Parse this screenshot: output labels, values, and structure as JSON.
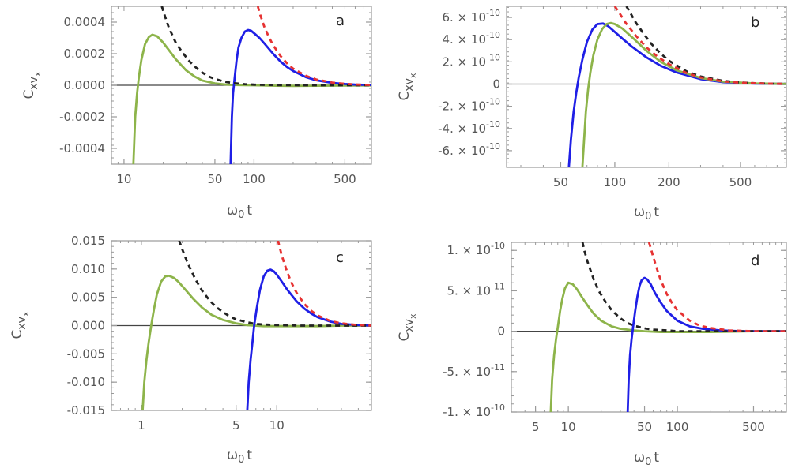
{
  "colors": {
    "green": "#8db44a",
    "blue": "#1f1fe6",
    "red": "#e63232",
    "black": "#222222",
    "frame": "#9a9a9a",
    "zero": "#444444"
  },
  "chart_data": [
    {
      "type": "line",
      "panel_label": "a",
      "xscale": "log",
      "xlim": [
        8,
        800
      ],
      "ylim": [
        -0.0005,
        0.0005
      ],
      "xlabel": {
        "main": "ω",
        "sub": "0",
        "rest": "t"
      },
      "ylabel": {
        "main": "C",
        "sub": "xv",
        "subsub": "x"
      },
      "xticks": [
        {
          "value": 10,
          "label": "10"
        },
        {
          "value": 50,
          "label": "50"
        },
        {
          "value": 100,
          "label": "100"
        },
        {
          "value": 500,
          "label": "500"
        }
      ],
      "yticks": [
        {
          "value": 0.0004,
          "label": "0.0004"
        },
        {
          "value": 0.0002,
          "label": "0.0002"
        },
        {
          "value": 0,
          "label": "0.0000"
        },
        {
          "value": -0.0002,
          "label": "-0.0002"
        },
        {
          "value": -0.0004,
          "label": "-0.0004"
        }
      ],
      "series": [
        {
          "name": "green",
          "style": "solid",
          "x": [
            11.8,
            12.2,
            12.6,
            13.0,
            13.6,
            14.5,
            15.5,
            16.5,
            18.0,
            20.0,
            22.5,
            25.0,
            30.0,
            35.0,
            40.0,
            50.0,
            60.0,
            70.0,
            85.0,
            100,
            150,
            200,
            300,
            500,
            800
          ],
          "y": [
            -0.0005,
            -0.0002,
            -5e-05,
            5e-05,
            0.00016,
            0.00026,
            0.000305,
            0.00032,
            0.00031,
            0.00027,
            0.000215,
            0.000165,
            9.5e-05,
            5.5e-05,
            3e-05,
            1.2e-05,
            5e-06,
            2e-06,
            5e-07,
            0,
            -3e-06,
            -4e-06,
            -3e-06,
            -2e-06,
            -1e-06
          ]
        },
        {
          "name": "blue",
          "style": "solid",
          "x": [
            66.0,
            67.5,
            69.0,
            71.0,
            73.5,
            76.0,
            80.0,
            85.0,
            90.0,
            95.0,
            100,
            110,
            120,
            140,
            160,
            180,
            200,
            250,
            300,
            400,
            500,
            600,
            800
          ],
          "y": [
            -0.0005,
            -0.0002,
            -5e-05,
            5e-05,
            0.00016,
            0.00024,
            0.0003,
            0.00034,
            0.00035,
            0.000345,
            0.00033,
            0.0003,
            0.000265,
            0.0002,
            0.00015,
            0.000115,
            9e-05,
            5.2e-05,
            3.2e-05,
            1.5e-05,
            8e-06,
            4e-06,
            2e-06
          ]
        },
        {
          "name": "black",
          "style": "dashed",
          "x": [
            19.5,
            20,
            22,
            25,
            28,
            32,
            36,
            40,
            45,
            50,
            60,
            70,
            85,
            100,
            150,
            200,
            300,
            500,
            800
          ],
          "y": [
            0.0005,
            0.00047,
            0.00037,
            0.00027,
            0.00021,
            0.00015,
            0.00011,
            8e-05,
            5.5e-05,
            4e-05,
            2.2e-05,
            1.3e-05,
            7e-06,
            4e-06,
            1e-06,
            5e-07,
            2e-07,
            0,
            0
          ]
        },
        {
          "name": "red",
          "style": "dashed",
          "x": [
            107,
            110,
            120,
            130,
            140,
            160,
            180,
            200,
            250,
            300,
            400,
            500,
            600,
            800
          ],
          "y": [
            0.0005,
            0.00046,
            0.00037,
            0.000305,
            0.000255,
            0.000185,
            0.000138,
            0.000105,
            6e-05,
            3.7e-05,
            1.7e-05,
            9e-06,
            5e-06,
            2e-06
          ]
        }
      ]
    },
    {
      "type": "line",
      "panel_label": "b",
      "xscale": "log",
      "xlim": [
        25,
        900
      ],
      "ylim": [
        -7.5e-10,
        7e-10
      ],
      "xlabel": {
        "main": "ω",
        "sub": "0",
        "rest": "t"
      },
      "ylabel": {
        "main": "C",
        "sub": "xv",
        "subsub": "x"
      },
      "xticks": [
        {
          "value": 50,
          "label": "50"
        },
        {
          "value": 100,
          "label": "100"
        },
        {
          "value": 200,
          "label": "200"
        },
        {
          "value": 500,
          "label": "500"
        }
      ],
      "yticks": [
        {
          "value": 6e-10,
          "mant": "6.",
          "exp": "-10"
        },
        {
          "value": 4e-10,
          "mant": "4.",
          "exp": "-10"
        },
        {
          "value": 2e-10,
          "mant": "2.",
          "exp": "-10"
        },
        {
          "value": 0,
          "label": "0"
        },
        {
          "value": -2e-10,
          "mant": "-2.",
          "exp": "-10"
        },
        {
          "value": -4e-10,
          "mant": "-4.",
          "exp": "-10"
        },
        {
          "value": -6e-10,
          "mant": "-6.",
          "exp": "-10"
        }
      ],
      "series": [
        {
          "name": "blue",
          "style": "solid",
          "x": [
            55.5,
            57,
            59,
            61,
            63,
            66,
            70,
            75,
            80,
            86,
            92,
            100,
            110,
            125,
            150,
            180,
            220,
            300,
            400,
            600,
            900
          ],
          "y": [
            -7.5e-10,
            -5e-10,
            -2.5e-10,
            -8e-11,
            6e-11,
            2.2e-10,
            3.8e-10,
            4.9e-10,
            5.4e-10,
            5.45e-10,
            5.2e-10,
            4.7e-10,
            4.1e-10,
            3.35e-10,
            2.4e-10,
            1.65e-10,
            1.05e-10,
            4.5e-11,
            1.8e-11,
            5e-12,
            1e-12
          ]
        },
        {
          "name": "green",
          "style": "solid",
          "x": [
            66,
            67.5,
            69,
            71,
            73,
            76,
            80,
            85,
            90,
            95,
            100,
            110,
            125,
            150,
            180,
            220,
            300,
            400,
            600,
            900
          ],
          "y": [
            -7.5e-10,
            -5e-10,
            -2.5e-10,
            -5e-11,
            1e-10,
            2.6e-10,
            4e-10,
            4.95e-10,
            5.4e-10,
            5.5e-10,
            5.4e-10,
            5e-10,
            4.2e-10,
            3e-10,
            2e-10,
            1.25e-10,
            5.5e-11,
            2.2e-11,
            6e-12,
            1e-12
          ]
        },
        {
          "name": "black",
          "style": "dashed",
          "x": [
            116,
            120,
            130,
            145,
            160,
            180,
            200,
            250,
            300,
            400,
            500,
            600,
            800,
            900
          ],
          "y": [
            7e-10,
            6.6e-10,
            5.6e-10,
            4.5e-10,
            3.6e-10,
            2.75e-10,
            2.1e-10,
            1.15e-10,
            6.8e-11,
            2.9e-11,
            1.4e-11,
            8e-12,
            3e-12,
            2e-12
          ]
        },
        {
          "name": "red",
          "style": "dashed",
          "x": [
            100,
            105,
            115,
            130,
            150,
            175,
            200,
            250,
            300,
            400,
            500,
            700,
            900
          ],
          "y": [
            7e-10,
            6.5e-10,
            5.5e-10,
            4.4e-10,
            3.3e-10,
            2.4e-10,
            1.8e-10,
            1e-10,
            6e-11,
            2.5e-11,
            1.2e-11,
            4e-12,
            1e-12
          ]
        }
      ]
    },
    {
      "type": "line",
      "panel_label": "c",
      "xscale": "log",
      "xlim": [
        0.6,
        50
      ],
      "ylim": [
        -0.015,
        0.015
      ],
      "xlabel": {
        "main": "ω",
        "sub": "0",
        "rest": "t"
      },
      "ylabel": {
        "main": "C",
        "sub": "xv",
        "subsub": "x"
      },
      "xticks": [
        {
          "value": 1,
          "label": "1"
        },
        {
          "value": 5,
          "label": "5"
        },
        {
          "value": 10,
          "label": "10"
        }
      ],
      "yticks": [
        {
          "value": 0.015,
          "label": "0.015"
        },
        {
          "value": 0.01,
          "label": "0.010"
        },
        {
          "value": 0.005,
          "label": "0.005"
        },
        {
          "value": 0,
          "label": "0.000"
        },
        {
          "value": -0.005,
          "label": "-0.005"
        },
        {
          "value": -0.01,
          "label": "-0.010"
        },
        {
          "value": -0.015,
          "label": "-0.015"
        }
      ],
      "series": [
        {
          "name": "green",
          "style": "solid",
          "x": [
            1.02,
            1.05,
            1.09,
            1.13,
            1.18,
            1.24,
            1.3,
            1.4,
            1.5,
            1.6,
            1.75,
            1.9,
            2.1,
            2.4,
            2.8,
            3.3,
            4,
            5,
            6,
            8,
            10,
            15,
            20,
            30,
            50
          ],
          "y": [
            -0.015,
            -0.01,
            -0.006,
            -0.003,
            0,
            0.003,
            0.0055,
            0.0078,
            0.0087,
            0.0088,
            0.0084,
            0.0076,
            0.0064,
            0.0048,
            0.0032,
            0.0019,
            0.001,
            0.0004,
            0.0001,
            -0.0001,
            -0.0001,
            -0.0001,
            -0.0001,
            0,
            0
          ]
        },
        {
          "name": "blue",
          "style": "solid",
          "x": [
            6.05,
            6.2,
            6.4,
            6.6,
            6.8,
            7.1,
            7.5,
            8,
            8.5,
            9,
            9.5,
            10,
            11,
            12,
            14,
            16,
            18,
            20,
            25,
            30,
            40,
            50
          ],
          "y": [
            -0.015,
            -0.01,
            -0.006,
            -0.003,
            0,
            0.003,
            0.0063,
            0.0087,
            0.0097,
            0.0099,
            0.0096,
            0.009,
            0.0076,
            0.0063,
            0.0043,
            0.003,
            0.0021,
            0.0015,
            0.0007,
            0.0003,
            0.0001,
            0
          ]
        },
        {
          "name": "black",
          "style": "dashed",
          "x": [
            1.9,
            2,
            2.2,
            2.5,
            2.8,
            3.2,
            3.6,
            4,
            4.5,
            5,
            6,
            7,
            8,
            10,
            15,
            20,
            30,
            50
          ],
          "y": [
            0.015,
            0.0135,
            0.011,
            0.0082,
            0.0062,
            0.0044,
            0.0032,
            0.0024,
            0.0016,
            0.0011,
            0.0006,
            0.0003,
            0.0002,
            0.0001,
            0,
            0,
            0,
            0
          ]
        },
        {
          "name": "red",
          "style": "dashed",
          "x": [
            10.2,
            10.5,
            11,
            12,
            13,
            14,
            16,
            18,
            20,
            25,
            30,
            40,
            50
          ],
          "y": [
            0.015,
            0.0138,
            0.012,
            0.0093,
            0.0073,
            0.0058,
            0.0038,
            0.0026,
            0.0018,
            0.0008,
            0.0004,
            0.0001,
            0
          ]
        }
      ]
    },
    {
      "type": "line",
      "panel_label": "d",
      "xscale": "log",
      "xlim": [
        3,
        1000
      ],
      "ylim": [
        -1e-10,
        1.1e-10
      ],
      "xlabel": {
        "main": "ω",
        "sub": "0",
        "rest": "t"
      },
      "ylabel": {
        "main": "C",
        "sub": "xv",
        "subsub": "x"
      },
      "xticks": [
        {
          "value": 5,
          "label": "5"
        },
        {
          "value": 10,
          "label": "10"
        },
        {
          "value": 50,
          "label": "50"
        },
        {
          "value": 100,
          "label": "100"
        },
        {
          "value": 500,
          "label": "500"
        }
      ],
      "yticks": [
        {
          "value": 1e-10,
          "mant": "1.",
          "exp": "-10"
        },
        {
          "value": 5e-11,
          "mant": "5.",
          "exp": "-11"
        },
        {
          "value": 0,
          "label": "0"
        },
        {
          "value": -5e-11,
          "mant": "-5.",
          "exp": "-11"
        },
        {
          "value": -1e-10,
          "mant": "-1.",
          "exp": "-10"
        }
      ],
      "series": [
        {
          "name": "green",
          "style": "solid",
          "x": [
            6.9,
            7.1,
            7.4,
            7.7,
            8,
            8.4,
            8.8,
            9.3,
            10,
            11,
            12,
            13.5,
            15,
            17,
            20,
            25,
            30,
            40,
            50,
            70,
            100,
            200,
            500,
            1000
          ],
          "y": [
            -1e-10,
            -6e-11,
            -3e-11,
            -1e-11,
            5e-12,
            2.5e-11,
            4e-11,
            5.3e-11,
            6e-11,
            5.8e-11,
            5.2e-11,
            4.1e-11,
            3.2e-11,
            2.2e-11,
            1.3e-11,
            6e-12,
            3e-12,
            1e-12,
            0,
            -1e-12,
            -1e-12,
            -1e-12,
            0,
            0
          ]
        },
        {
          "name": "blue",
          "style": "solid",
          "x": [
            35,
            35.8,
            36.8,
            38,
            39.5,
            41,
            43,
            45,
            47,
            50,
            53,
            57,
            62,
            70,
            80,
            100,
            130,
            170,
            250,
            400,
            700,
            1000
          ],
          "y": [
            -1e-10,
            -6e-11,
            -3e-11,
            -1e-11,
            8e-12,
            2.5e-11,
            4.3e-11,
            5.6e-11,
            6.3e-11,
            6.6e-11,
            6.4e-11,
            5.8e-11,
            4.8e-11,
            3.6e-11,
            2.5e-11,
            1.3e-11,
            6e-12,
            3e-12,
            1e-12,
            0,
            0,
            0
          ]
        },
        {
          "name": "black",
          "style": "dashed",
          "x": [
            13.5,
            14,
            15,
            17,
            19,
            22,
            25,
            30,
            35,
            40,
            50,
            60,
            80,
            100,
            200,
            500,
            1000
          ],
          "y": [
            1.1e-10,
            1e-10,
            8.6e-11,
            6.5e-11,
            5e-11,
            3.6e-11,
            2.6e-11,
            1.6e-11,
            1e-11,
            7e-12,
            3.5e-12,
            2e-12,
            1e-12,
            0,
            0,
            0,
            0
          ]
        },
        {
          "name": "red",
          "style": "dashed",
          "x": [
            55,
            57,
            60,
            65,
            70,
            80,
            90,
            100,
            130,
            160,
            200,
            300,
            500,
            1000
          ],
          "y": [
            1.1e-10,
            1.03e-10,
            9.2e-11,
            7.7e-11,
            6.4e-11,
            4.6e-11,
            3.4e-11,
            2.6e-11,
            1.3e-11,
            7e-12,
            4e-12,
            1e-12,
            0,
            0
          ]
        }
      ]
    }
  ]
}
